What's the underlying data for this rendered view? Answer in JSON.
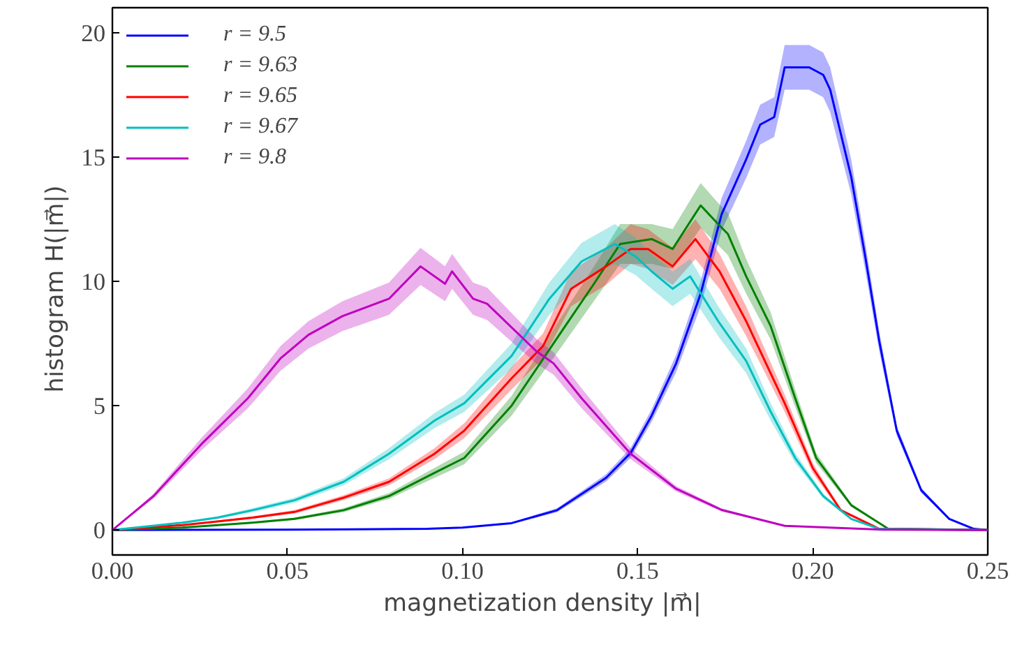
{
  "chart_data": {
    "type": "line",
    "xlabel": "magnetization density   |m⃗|",
    "ylabel": "histogram   H(|m⃗|)",
    "xlim": [
      0,
      0.25
    ],
    "ylim": [
      -1,
      21
    ],
    "xticks": [
      {
        "value": 0,
        "label": "0.00"
      },
      {
        "value": 0.05,
        "label": "0.05"
      },
      {
        "value": 0.1,
        "label": "0.10"
      },
      {
        "value": 0.15,
        "label": "0.15"
      },
      {
        "value": 0.2,
        "label": "0.20"
      },
      {
        "value": 0.25,
        "label": "0.25"
      }
    ],
    "yticks": [
      0,
      5,
      10,
      15,
      20
    ],
    "grid": false,
    "legend": "top left",
    "series": [
      {
        "name": "r = 9.5",
        "color": "#0000ff",
        "x": [
          0,
          0.05,
          0.09,
          0.1,
          0.114,
          0.127,
          0.141,
          0.148,
          0.154,
          0.161,
          0.168,
          0.174,
          0.181,
          0.185,
          0.189,
          0.192,
          0.199,
          0.203,
          0.205,
          0.211,
          0.215,
          0.219,
          0.224,
          0.231,
          0.239,
          0.246,
          0.25
        ],
        "values": [
          0,
          0.02,
          0.05,
          0.1,
          0.28,
          0.8,
          2.1,
          3.1,
          4.6,
          6.7,
          9.5,
          12.7,
          14.9,
          16.3,
          16.6,
          18.6,
          18.6,
          18.3,
          17.7,
          14.2,
          11.0,
          7.6,
          4.0,
          1.6,
          0.45,
          0.05,
          0
        ],
        "lower": [
          0,
          0,
          0.03,
          0.08,
          0.24,
          0.72,
          1.95,
          2.9,
          4.35,
          6.35,
          9.0,
          12.05,
          14.15,
          15.5,
          15.8,
          17.7,
          17.7,
          17.4,
          16.8,
          13.5,
          10.45,
          7.2,
          3.8,
          1.5,
          0.42,
          0.03,
          0
        ],
        "upper": [
          0,
          0.04,
          0.07,
          0.12,
          0.32,
          0.88,
          2.25,
          3.3,
          4.85,
          7.05,
          10.0,
          13.35,
          15.65,
          17.1,
          17.4,
          19.5,
          19.5,
          19.2,
          18.6,
          14.9,
          11.55,
          8.0,
          4.2,
          1.7,
          0.48,
          0.07,
          0
        ]
      },
      {
        "name": "r = 9.63",
        "color": "#008000",
        "x": [
          0,
          0.01,
          0.02,
          0.03,
          0.04,
          0.052,
          0.066,
          0.079,
          0.092,
          0.1005,
          0.114,
          0.1274,
          0.138,
          0.145,
          0.154,
          0.16,
          0.168,
          0.173,
          0.1758,
          0.181,
          0.188,
          0.195,
          0.201,
          0.211,
          0.2215,
          0.25
        ],
        "values": [
          0,
          0.05,
          0.1,
          0.2,
          0.3,
          0.45,
          0.8,
          1.37,
          2.3,
          2.9,
          5.0,
          7.8,
          10.0,
          11.5,
          11.7,
          11.3,
          13.05,
          12.3,
          11.9,
          10.2,
          8.2,
          5.3,
          2.9,
          1.0,
          0.06,
          0
        ],
        "lower": [
          0,
          0.03,
          0.08,
          0.17,
          0.26,
          0.4,
          0.72,
          1.25,
          2.1,
          2.65,
          4.6,
          7.2,
          9.3,
          10.7,
          10.7,
          10.5,
          12.15,
          11.45,
          11.05,
          9.5,
          7.65,
          4.95,
          2.7,
          0.93,
          0.04,
          0
        ],
        "upper": [
          0,
          0.07,
          0.12,
          0.23,
          0.34,
          0.5,
          0.88,
          1.49,
          2.5,
          3.15,
          5.4,
          8.4,
          10.7,
          12.3,
          12.3,
          12.1,
          13.95,
          13.15,
          12.75,
          10.9,
          8.75,
          5.65,
          3.1,
          1.07,
          0.08,
          0
        ]
      },
      {
        "name": "r = 9.65",
        "color": "#ff0000",
        "x": [
          0,
          0.01,
          0.02,
          0.03,
          0.04,
          0.052,
          0.066,
          0.079,
          0.092,
          0.1005,
          0.114,
          0.123,
          0.131,
          0.141,
          0.148,
          0.153,
          0.16,
          0.1665,
          0.1734,
          0.181,
          0.185,
          0.192,
          0.2,
          0.208,
          0.219,
          0.25
        ],
        "values": [
          0,
          0.1,
          0.2,
          0.35,
          0.5,
          0.73,
          1.3,
          1.94,
          3.07,
          4.0,
          6.1,
          7.4,
          9.7,
          10.6,
          11.3,
          11.3,
          10.6,
          11.7,
          10.4,
          8.4,
          7.2,
          5.1,
          2.5,
          0.8,
          0.05,
          0
        ],
        "lower": [
          0,
          0.08,
          0.17,
          0.31,
          0.45,
          0.66,
          1.2,
          1.8,
          2.85,
          3.7,
          5.65,
          6.9,
          9.0,
          9.85,
          10.7,
          10.5,
          9.85,
          10.9,
          9.7,
          7.8,
          6.7,
          4.75,
          2.3,
          0.74,
          0.03,
          0
        ],
        "upper": [
          0,
          0.12,
          0.23,
          0.39,
          0.55,
          0.8,
          1.4,
          2.08,
          3.29,
          4.3,
          6.55,
          7.9,
          10.4,
          11.35,
          12.3,
          12.1,
          11.35,
          12.5,
          11.1,
          9.0,
          7.7,
          5.45,
          2.7,
          0.86,
          0.07,
          0
        ]
      },
      {
        "name": "r = 9.67",
        "color": "#00bfbf",
        "x": [
          0,
          0.01,
          0.02,
          0.03,
          0.04,
          0.052,
          0.066,
          0.079,
          0.092,
          0.1005,
          0.114,
          0.1248,
          0.134,
          0.1435,
          0.1494,
          0.154,
          0.16,
          0.165,
          0.173,
          0.181,
          0.188,
          0.195,
          0.203,
          0.211,
          0.219,
          0.25
        ],
        "values": [
          0,
          0.15,
          0.3,
          0.5,
          0.8,
          1.2,
          1.94,
          3.07,
          4.4,
          5.1,
          7.0,
          9.3,
          10.8,
          11.5,
          11.0,
          10.4,
          9.7,
          10.2,
          8.4,
          6.8,
          4.76,
          2.9,
          1.37,
          0.45,
          0.05,
          0
        ],
        "lower": [
          0,
          0.13,
          0.27,
          0.45,
          0.72,
          1.1,
          1.8,
          2.85,
          4.1,
          4.75,
          6.5,
          8.65,
          10.05,
          10.7,
          10.25,
          9.7,
          9.0,
          9.5,
          7.8,
          6.3,
          4.4,
          2.7,
          1.27,
          0.42,
          0.03,
          0
        ],
        "upper": [
          0,
          0.17,
          0.33,
          0.55,
          0.88,
          1.3,
          2.08,
          3.29,
          4.7,
          5.45,
          7.5,
          9.95,
          11.55,
          12.3,
          11.75,
          11.1,
          10.4,
          10.9,
          9.0,
          7.3,
          5.1,
          3.1,
          1.47,
          0.48,
          0.07,
          0
        ]
      },
      {
        "name": "r = 9.8",
        "color": "#bf00bf",
        "x": [
          0,
          0.0117,
          0.0254,
          0.0387,
          0.048,
          0.056,
          0.0657,
          0.079,
          0.088,
          0.095,
          0.097,
          0.103,
          0.107,
          0.121,
          0.126,
          0.134,
          0.148,
          0.161,
          0.174,
          0.192,
          0.22,
          0.25
        ],
        "values": [
          0,
          1.36,
          3.45,
          5.3,
          6.9,
          7.85,
          8.6,
          9.3,
          10.6,
          9.9,
          10.4,
          9.3,
          9.1,
          7.2,
          6.7,
          5.3,
          3.07,
          1.66,
          0.81,
          0.17,
          0.02,
          0
        ],
        "lower": [
          0,
          1.26,
          3.2,
          4.9,
          6.4,
          7.3,
          8.0,
          8.65,
          9.85,
          9.2,
          9.7,
          8.65,
          8.45,
          6.7,
          6.25,
          4.9,
          2.85,
          1.55,
          0.75,
          0.15,
          0.01,
          0
        ],
        "upper": [
          0,
          1.46,
          3.7,
          5.7,
          7.4,
          8.4,
          9.2,
          9.95,
          11.35,
          10.6,
          11.1,
          9.95,
          9.75,
          7.7,
          7.15,
          5.7,
          3.29,
          1.77,
          0.87,
          0.19,
          0.03,
          0
        ]
      }
    ]
  }
}
